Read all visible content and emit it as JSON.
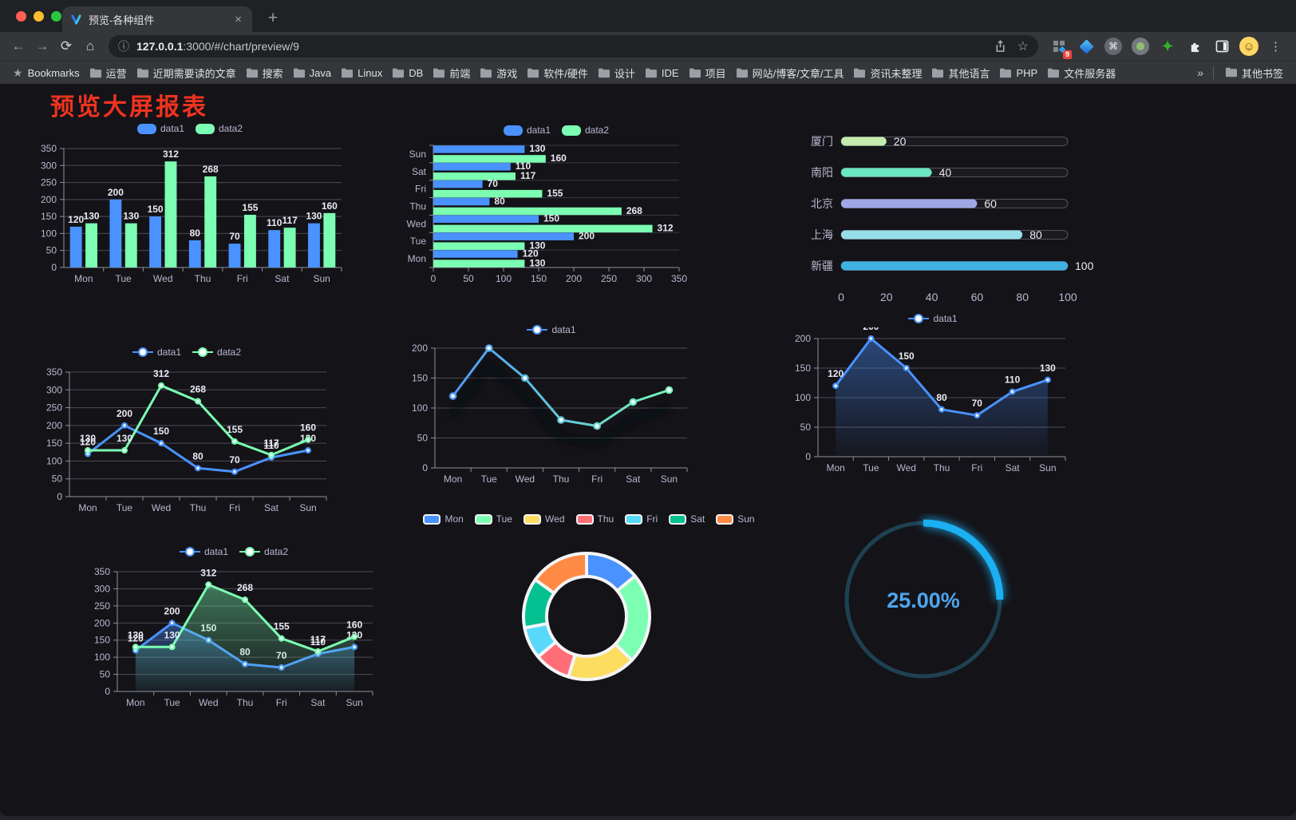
{
  "browser": {
    "tab_title": "预览-各种组件",
    "url": {
      "host": "127.0.0.1",
      "rest": ":3000/#/chart/preview/9"
    },
    "extension_badge": "9",
    "icons": {
      "back": "←",
      "forward": "→",
      "reload": "⟳",
      "home": "⌂",
      "info": "ⓘ",
      "star": "☆",
      "bookmarks_star": "★",
      "command": "⌘",
      "green_star": "✦",
      "kebab": "⋮",
      "close_tab": "×",
      "new_tab": "+",
      "overflow": "»",
      "avatar_face": "☺"
    },
    "bookmarks": {
      "root_label": "Bookmarks",
      "folders": [
        "运营",
        "近期需要读的文章",
        "搜索",
        "Java",
        "Linux",
        "DB",
        "前端",
        "游戏",
        "软件/硬件",
        "设计",
        "IDE",
        "项目",
        "网站/博客/文章/工具",
        "资讯未整理",
        "其他语言",
        "PHP",
        "文件服务器"
      ],
      "overflow_label": "»",
      "other_label": "其他书签"
    }
  },
  "page": {
    "title": "预览大屏报表",
    "title_color": "#f0331f"
  },
  "theme": {
    "background": "#141318",
    "text": "#b9b8ce",
    "grid_line": "#4b4b56",
    "axis_line": "#90909c",
    "value_label": "#eaeaf2"
  },
  "chart_data": [
    {
      "id": "grouped-bar",
      "type": "bar",
      "legend": "top",
      "categories": [
        "Mon",
        "Tue",
        "Wed",
        "Thu",
        "Fri",
        "Sat",
        "Sun"
      ],
      "series": [
        {
          "name": "data1",
          "color": "#4992ff",
          "values": [
            120,
            200,
            150,
            80,
            70,
            110,
            130
          ]
        },
        {
          "name": "data2",
          "color": "#7cffb2",
          "values": [
            130,
            130,
            312,
            268,
            155,
            117,
            160
          ]
        }
      ],
      "ylim": [
        0,
        350
      ],
      "ystep": 50
    },
    {
      "id": "horizontal-bar",
      "type": "hbar",
      "legend": "top",
      "categories": [
        "Mon",
        "Tue",
        "Wed",
        "Thu",
        "Fri",
        "Sat",
        "Sun"
      ],
      "series": [
        {
          "name": "data1",
          "color": "#4992ff",
          "values": [
            120,
            200,
            150,
            80,
            70,
            110,
            130
          ]
        },
        {
          "name": "data2",
          "color": "#7cffb2",
          "values": [
            130,
            130,
            312,
            268,
            155,
            117,
            160
          ]
        }
      ],
      "xlim": [
        0,
        350
      ],
      "xstep": 50
    },
    {
      "id": "capsule-progress",
      "type": "capsule",
      "items": [
        {
          "label": "厦门",
          "value": 20,
          "color": "#c4ebad"
        },
        {
          "label": "南阳",
          "value": 40,
          "color": "#6be6c1"
        },
        {
          "label": "北京",
          "value": 60,
          "color": "#a0a7e6"
        },
        {
          "label": "上海",
          "value": 80,
          "color": "#96dee8"
        },
        {
          "label": "新疆",
          "value": 100,
          "color": "#3fb1e3"
        }
      ],
      "xlim": [
        0,
        100
      ],
      "xticks": [
        0,
        20,
        40,
        60,
        80,
        100
      ]
    },
    {
      "id": "line-two-series",
      "type": "line",
      "legend": "top",
      "labels": true,
      "categories": [
        "Mon",
        "Tue",
        "Wed",
        "Thu",
        "Fri",
        "Sat",
        "Sun"
      ],
      "series": [
        {
          "name": "data1",
          "color": "#4992ff",
          "values": [
            120,
            200,
            150,
            80,
            70,
            110,
            130
          ]
        },
        {
          "name": "data2",
          "color": "#7cffb2",
          "values": [
            130,
            130,
            312,
            268,
            155,
            117,
            160
          ]
        }
      ],
      "ylim": [
        0,
        350
      ],
      "ystep": 50
    },
    {
      "id": "gradient-line",
      "type": "line",
      "legend": "top",
      "labels": false,
      "shadow": true,
      "categories": [
        "Mon",
        "Tue",
        "Wed",
        "Thu",
        "Fri",
        "Sat",
        "Sun"
      ],
      "series": [
        {
          "name": "data1",
          "color": "#4992ff",
          "gradient": [
            "#4992ff",
            "#7cffb2"
          ],
          "values": [
            120,
            200,
            150,
            80,
            70,
            110,
            130
          ]
        }
      ],
      "ylim": [
        0,
        200
      ],
      "ystep": 50
    },
    {
      "id": "area-single",
      "type": "line",
      "legend": "top",
      "labels": true,
      "categories": [
        "Mon",
        "Tue",
        "Wed",
        "Thu",
        "Fri",
        "Sat",
        "Sun"
      ],
      "series": [
        {
          "name": "data1",
          "color": "#4992ff",
          "area": true,
          "values": [
            120,
            200,
            150,
            80,
            70,
            110,
            130
          ]
        }
      ],
      "ylim": [
        0,
        200
      ],
      "ystep": 50
    },
    {
      "id": "area-two-series",
      "type": "line",
      "legend": "top",
      "labels": true,
      "categories": [
        "Mon",
        "Tue",
        "Wed",
        "Thu",
        "Fri",
        "Sat",
        "Sun"
      ],
      "series": [
        {
          "name": "data1",
          "color": "#4992ff",
          "area": true,
          "values": [
            120,
            200,
            150,
            80,
            70,
            110,
            130
          ]
        },
        {
          "name": "data2",
          "color": "#7cffb2",
          "area": true,
          "values": [
            130,
            130,
            312,
            268,
            155,
            117,
            160
          ]
        }
      ],
      "ylim": [
        0,
        350
      ],
      "ystep": 50
    },
    {
      "id": "donut",
      "type": "pie",
      "legend": "top",
      "categories": [
        "Mon",
        "Tue",
        "Wed",
        "Thu",
        "Fri",
        "Sat",
        "Sun"
      ],
      "values": [
        120,
        200,
        150,
        80,
        70,
        110,
        130
      ],
      "colors": [
        "#4992ff",
        "#7cffb2",
        "#fddd60",
        "#ff6e76",
        "#58d9f9",
        "#05c091",
        "#ff8a45"
      ],
      "border_color": "#f4f4f6"
    },
    {
      "id": "gauge",
      "type": "gauge",
      "value": 25,
      "max": 100,
      "label": "25.00%",
      "arc_color": "#1caff2",
      "track_color": "#1e4152",
      "text_color": "#4ea6ee"
    }
  ]
}
